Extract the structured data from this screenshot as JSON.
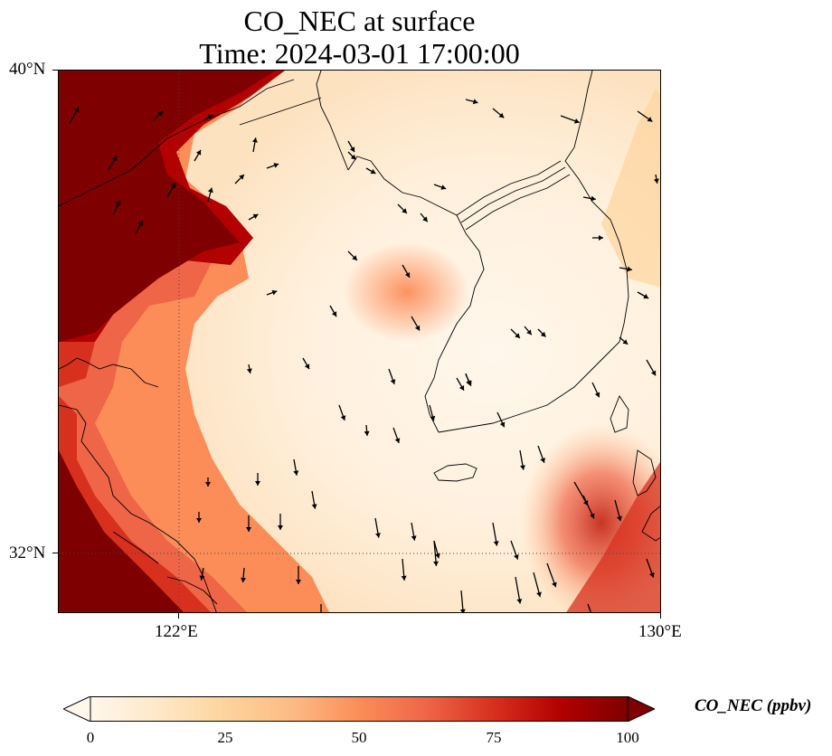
{
  "title": {
    "line1": "CO_NEC at surface",
    "line2": "Time: 2024-03-01 17:00:00"
  },
  "map": {
    "lon_range": [
      120,
      130
    ],
    "lat_range": [
      31,
      40
    ],
    "lat_ticks": [
      {
        "value": 40,
        "label": "40°N"
      },
      {
        "value": 32,
        "label": "32°N"
      }
    ],
    "lon_ticks": [
      {
        "value": 122,
        "label": "122°E"
      },
      {
        "value": 130,
        "label": "130°E"
      }
    ],
    "gridlines": "dotted",
    "field": "CO_NEC",
    "wind_arrows": "black quiver arrows"
  },
  "colorbar": {
    "label": "CO_NEC (ppbv)",
    "ticks": [
      "0",
      "25",
      "50",
      "75",
      "100"
    ],
    "min": 0,
    "max": 100,
    "extend": "both",
    "colormap": "OrRd",
    "colors": [
      "#fff7ec",
      "#fee8c8",
      "#fdd49e",
      "#fdbb84",
      "#fc8d59",
      "#ef6548",
      "#d7301f",
      "#b30000",
      "#7f0000"
    ]
  }
}
